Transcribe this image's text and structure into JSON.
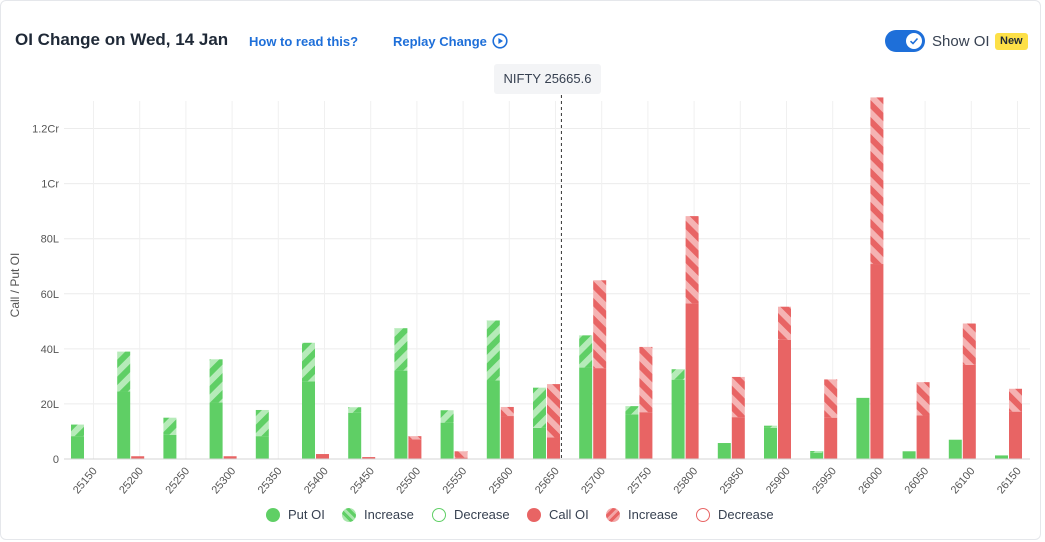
{
  "header": {
    "title": "OI Change on Wed, 14 Jan",
    "how_to_read": "How to read this?",
    "replay": "Replay Change",
    "show_oi_label": "Show OI",
    "new_badge": "New",
    "show_oi_on": true
  },
  "spot": {
    "label": "NIFTY 25665.6",
    "value": 25665.6
  },
  "colors": {
    "put": "#5fcf65",
    "put_light": "#a9e6ac",
    "call": "#e86464",
    "call_light": "#f3a6a6"
  },
  "legend": [
    {
      "label": "Put OI",
      "style": "put-solid"
    },
    {
      "label": "Increase",
      "style": "put-hatch"
    },
    {
      "label": "Decrease",
      "style": "put-outline"
    },
    {
      "label": "Call OI",
      "style": "call-solid"
    },
    {
      "label": "Increase",
      "style": "call-hatch"
    },
    {
      "label": "Decrease",
      "style": "call-outline"
    }
  ],
  "chart_data": {
    "type": "bar",
    "ylabel": "Call / Put OI",
    "xlabel": "",
    "ylim": [
      0,
      13000000
    ],
    "yticks": [
      {
        "value": 0,
        "label": "0"
      },
      {
        "value": 2000000,
        "label": "20L"
      },
      {
        "value": 4000000,
        "label": "40L"
      },
      {
        "value": 6000000,
        "label": "60L"
      },
      {
        "value": 8000000,
        "label": "80L"
      },
      {
        "value": 10000000,
        "label": "1Cr"
      },
      {
        "value": 12000000,
        "label": "1.2Cr"
      }
    ],
    "categories": [
      "25150",
      "25200",
      "25250",
      "25300",
      "25350",
      "25400",
      "25450",
      "25500",
      "25550",
      "25600",
      "25650",
      "25700",
      "25750",
      "25800",
      "25850",
      "25900",
      "25950",
      "26000",
      "26050",
      "26100",
      "26150"
    ],
    "series": [
      {
        "name": "Put OI",
        "base": [
          830000,
          2450000,
          880000,
          2050000,
          830000,
          2820000,
          1680000,
          3210000,
          1320000,
          2850000,
          1130000,
          3320000,
          1620000,
          2880000,
          580000,
          1130000,
          230000,
          2220000,
          280000,
          700000,
          130000
        ],
        "increase": [
          420000,
          1450000,
          620000,
          1570000,
          950000,
          1400000,
          200000,
          1540000,
          450000,
          2180000,
          1460000,
          1170000,
          300000,
          380000,
          0,
          80000,
          60000,
          0,
          0,
          0,
          0
        ]
      },
      {
        "name": "Call OI",
        "base": [
          0,
          100000,
          0,
          100000,
          0,
          180000,
          70000,
          710000,
          50000,
          1560000,
          780000,
          3300000,
          1700000,
          5650000,
          1520000,
          4330000,
          1500000,
          7080000,
          1580000,
          3420000,
          1720000
        ],
        "increase": [
          0,
          0,
          0,
          0,
          0,
          0,
          0,
          120000,
          230000,
          330000,
          1940000,
          3190000,
          2370000,
          3170000,
          1460000,
          1200000,
          1390000,
          6050000,
          1210000,
          1500000,
          830000
        ]
      }
    ]
  }
}
